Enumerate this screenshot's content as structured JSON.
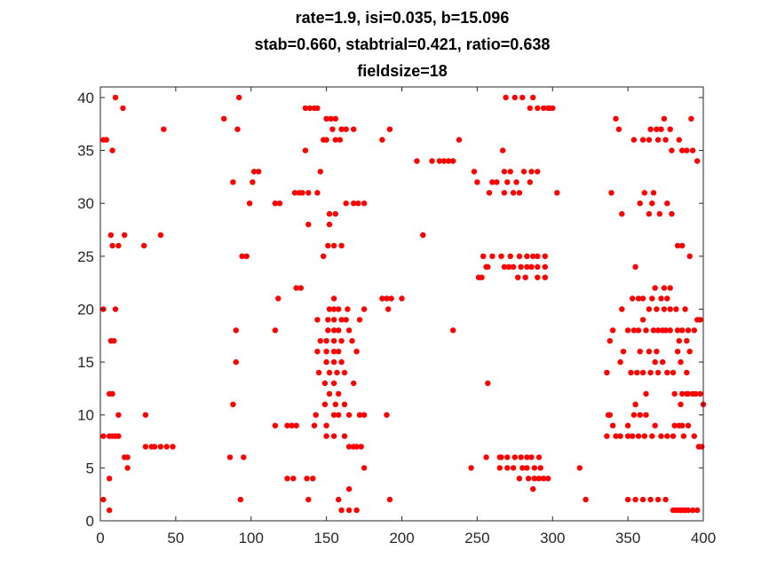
{
  "chart_data": {
    "type": "scatter",
    "title_lines": [
      "rate=1.9, isi=0.035, b=15.096",
      "stab=0.660, stabtrial=0.421, ratio=0.638",
      "fieldsize=18"
    ],
    "xlabel": "",
    "ylabel": "",
    "xlim": [
      0,
      400
    ],
    "ylim": [
      0,
      41
    ],
    "xticks": [
      "0",
      "50",
      "100",
      "150",
      "200",
      "250",
      "300",
      "350",
      "400"
    ],
    "yticks": [
      "0",
      "5",
      "10",
      "15",
      "20",
      "25",
      "30",
      "35",
      "40"
    ],
    "grid": false,
    "marker_color": "#ff0000",
    "points": [
      [
        2,
        36
      ],
      [
        4,
        36
      ],
      [
        2,
        20
      ],
      [
        2,
        8
      ],
      [
        6,
        1
      ],
      [
        2,
        2
      ],
      [
        6,
        4
      ],
      [
        6,
        12
      ],
      [
        8,
        12
      ],
      [
        7,
        17
      ],
      [
        9,
        17
      ],
      [
        6,
        8
      ],
      [
        8,
        8
      ],
      [
        10,
        8
      ],
      [
        12,
        8
      ],
      [
        7,
        27
      ],
      [
        8,
        26
      ],
      [
        12,
        26
      ],
      [
        8,
        35
      ],
      [
        10,
        40
      ],
      [
        15,
        39
      ],
      [
        10,
        20
      ],
      [
        12,
        10
      ],
      [
        16,
        6
      ],
      [
        18,
        6
      ],
      [
        16,
        27
      ],
      [
        18,
        5
      ],
      [
        29,
        26
      ],
      [
        30,
        10
      ],
      [
        30,
        7
      ],
      [
        34,
        7
      ],
      [
        36,
        7
      ],
      [
        40,
        7
      ],
      [
        44,
        7
      ],
      [
        48,
        7
      ],
      [
        40,
        27
      ],
      [
        42,
        37
      ],
      [
        82,
        38
      ],
      [
        86,
        6
      ],
      [
        88,
        32
      ],
      [
        88,
        11
      ],
      [
        90,
        15
      ],
      [
        90,
        18
      ],
      [
        91,
        37
      ],
      [
        92,
        40
      ],
      [
        94,
        25
      ],
      [
        97,
        25
      ],
      [
        95,
        6
      ],
      [
        93,
        2
      ],
      [
        99,
        30
      ],
      [
        101,
        32
      ],
      [
        102,
        33
      ],
      [
        105,
        33
      ],
      [
        116,
        9
      ],
      [
        116,
        18
      ],
      [
        116,
        30
      ],
      [
        119,
        30
      ],
      [
        118,
        21
      ],
      [
        124,
        4
      ],
      [
        124,
        9
      ],
      [
        128,
        4
      ],
      [
        127,
        9
      ],
      [
        130,
        9
      ],
      [
        130,
        22
      ],
      [
        129,
        31
      ],
      [
        132,
        31
      ],
      [
        133,
        22
      ],
      [
        134,
        31
      ],
      [
        136,
        39
      ],
      [
        136,
        35
      ],
      [
        138,
        31
      ],
      [
        139,
        39
      ],
      [
        142,
        39
      ],
      [
        144,
        31
      ],
      [
        144,
        39
      ],
      [
        137,
        4
      ],
      [
        141,
        4
      ],
      [
        138,
        28
      ],
      [
        138,
        2
      ],
      [
        142,
        9
      ],
      [
        143,
        10
      ],
      [
        144,
        19
      ],
      [
        144,
        16
      ],
      [
        145,
        14
      ],
      [
        146,
        17
      ],
      [
        146,
        33
      ],
      [
        148,
        36
      ],
      [
        148,
        25
      ],
      [
        150,
        36
      ],
      [
        150,
        38
      ],
      [
        151,
        26
      ],
      [
        152,
        28
      ],
      [
        152,
        29
      ],
      [
        153,
        38
      ],
      [
        154,
        37
      ],
      [
        155,
        26
      ],
      [
        156,
        38
      ],
      [
        156,
        36
      ],
      [
        158,
        2
      ],
      [
        160,
        1
      ],
      [
        160,
        26
      ],
      [
        149,
        11
      ],
      [
        149,
        13
      ],
      [
        150,
        8
      ],
      [
        150,
        9
      ],
      [
        150,
        15
      ],
      [
        150,
        16
      ],
      [
        150,
        17
      ],
      [
        151,
        18
      ],
      [
        151,
        19
      ],
      [
        152,
        20
      ],
      [
        152,
        12
      ],
      [
        152,
        14
      ],
      [
        155,
        8
      ],
      [
        155,
        10
      ],
      [
        155,
        13
      ],
      [
        155,
        15
      ],
      [
        155,
        16
      ],
      [
        155,
        17
      ],
      [
        155,
        18
      ],
      [
        155,
        19
      ],
      [
        155,
        20
      ],
      [
        155,
        21
      ],
      [
        156,
        29
      ],
      [
        156,
        11
      ],
      [
        157,
        14
      ],
      [
        158,
        10
      ],
      [
        158,
        12
      ],
      [
        158,
        16
      ],
      [
        158,
        18
      ],
      [
        158,
        20
      ],
      [
        159,
        36
      ],
      [
        160,
        37
      ],
      [
        160,
        15
      ],
      [
        160,
        17
      ],
      [
        160,
        19
      ],
      [
        162,
        8
      ],
      [
        162,
        11
      ],
      [
        162,
        14
      ],
      [
        163,
        30
      ],
      [
        163,
        37
      ],
      [
        163,
        19
      ],
      [
        164,
        20
      ],
      [
        165,
        1
      ],
      [
        165,
        3
      ],
      [
        165,
        7
      ],
      [
        165,
        18
      ],
      [
        165,
        10
      ],
      [
        167,
        17
      ],
      [
        168,
        7
      ],
      [
        168,
        30
      ],
      [
        168,
        37
      ],
      [
        168,
        13
      ],
      [
        170,
        7
      ],
      [
        170,
        1
      ],
      [
        170,
        16
      ],
      [
        171,
        30
      ],
      [
        172,
        10
      ],
      [
        172,
        19
      ],
      [
        173,
        7
      ],
      [
        175,
        30
      ],
      [
        175,
        10
      ],
      [
        175,
        5
      ],
      [
        175,
        20
      ],
      [
        187,
        21
      ],
      [
        190,
        21
      ],
      [
        190,
        10
      ],
      [
        187,
        36
      ],
      [
        192,
        37
      ],
      [
        191,
        20
      ],
      [
        192,
        2
      ],
      [
        193,
        21
      ],
      [
        200,
        21
      ],
      [
        210,
        34
      ],
      [
        214,
        27
      ],
      [
        220,
        34
      ],
      [
        225,
        34
      ],
      [
        228,
        34
      ],
      [
        231,
        34
      ],
      [
        234,
        18
      ],
      [
        234,
        34
      ],
      [
        238,
        36
      ],
      [
        246,
        5
      ],
      [
        248,
        33
      ],
      [
        250,
        32
      ],
      [
        251,
        23
      ],
      [
        253,
        23
      ],
      [
        254,
        25
      ],
      [
        256,
        24
      ],
      [
        256,
        6
      ],
      [
        257,
        13
      ],
      [
        257,
        24
      ],
      [
        258,
        31
      ],
      [
        260,
        32
      ],
      [
        260,
        25
      ],
      [
        263,
        32
      ],
      [
        265,
        5
      ],
      [
        265,
        6
      ],
      [
        266,
        6
      ],
      [
        266,
        25
      ],
      [
        267,
        35
      ],
      [
        268,
        33
      ],
      [
        268,
        24
      ],
      [
        268,
        31
      ],
      [
        269,
        40
      ],
      [
        270,
        32
      ],
      [
        270,
        5
      ],
      [
        270,
        6
      ],
      [
        271,
        24
      ],
      [
        272,
        25
      ],
      [
        272,
        33
      ],
      [
        274,
        31
      ],
      [
        274,
        24
      ],
      [
        274,
        5
      ],
      [
        275,
        40
      ],
      [
        275,
        6
      ],
      [
        276,
        32
      ],
      [
        277,
        23
      ],
      [
        278,
        25
      ],
      [
        278,
        4
      ],
      [
        278,
        31
      ],
      [
        279,
        24
      ],
      [
        279,
        6
      ],
      [
        280,
        5
      ],
      [
        280,
        40
      ],
      [
        281,
        33
      ],
      [
        282,
        23
      ],
      [
        283,
        24
      ],
      [
        283,
        6
      ],
      [
        283,
        25
      ],
      [
        283,
        5
      ],
      [
        284,
        4
      ],
      [
        285,
        39
      ],
      [
        285,
        32
      ],
      [
        286,
        6
      ],
      [
        286,
        24
      ],
      [
        287,
        25
      ],
      [
        286,
        33
      ],
      [
        287,
        40
      ],
      [
        287,
        3
      ],
      [
        288,
        5
      ],
      [
        288,
        4
      ],
      [
        290,
        39
      ],
      [
        290,
        24
      ],
      [
        290,
        25
      ],
      [
        290,
        23
      ],
      [
        290,
        33
      ],
      [
        291,
        6
      ],
      [
        291,
        4
      ],
      [
        292,
        5
      ],
      [
        294,
        4
      ],
      [
        294,
        39
      ],
      [
        295,
        24
      ],
      [
        295,
        25
      ],
      [
        295,
        23
      ],
      [
        297,
        4
      ],
      [
        297,
        39
      ],
      [
        298,
        39
      ],
      [
        300,
        39
      ],
      [
        303,
        31
      ],
      [
        318,
        5
      ],
      [
        322,
        2
      ],
      [
        336,
        8
      ],
      [
        336,
        14
      ],
      [
        337,
        10
      ],
      [
        338,
        10
      ],
      [
        338,
        17
      ],
      [
        339,
        31
      ],
      [
        340,
        18
      ],
      [
        340,
        9
      ],
      [
        342,
        38
      ],
      [
        342,
        8
      ],
      [
        344,
        37
      ],
      [
        345,
        15
      ],
      [
        345,
        8
      ],
      [
        346,
        20
      ],
      [
        346,
        29
      ],
      [
        347,
        16
      ],
      [
        350,
        2
      ],
      [
        350,
        18
      ],
      [
        350,
        9
      ],
      [
        350,
        8
      ],
      [
        352,
        14
      ],
      [
        353,
        21
      ],
      [
        353,
        8
      ],
      [
        354,
        18
      ],
      [
        354,
        10
      ],
      [
        354,
        36
      ],
      [
        355,
        24
      ],
      [
        355,
        2
      ],
      [
        355,
        11
      ],
      [
        356,
        14
      ],
      [
        357,
        21
      ],
      [
        357,
        18
      ],
      [
        357,
        8
      ],
      [
        358,
        10
      ],
      [
        358,
        30
      ],
      [
        358,
        16
      ],
      [
        360,
        2
      ],
      [
        360,
        19
      ],
      [
        360,
        36
      ],
      [
        360,
        21
      ],
      [
        360,
        14
      ],
      [
        361,
        31
      ],
      [
        361,
        8
      ],
      [
        362,
        18
      ],
      [
        362,
        10
      ],
      [
        362,
        12
      ],
      [
        364,
        29
      ],
      [
        364,
        20
      ],
      [
        364,
        16
      ],
      [
        364,
        36
      ],
      [
        365,
        2
      ],
      [
        365,
        37
      ],
      [
        365,
        14
      ],
      [
        366,
        21
      ],
      [
        366,
        8
      ],
      [
        366,
        30
      ],
      [
        367,
        18
      ],
      [
        367,
        31
      ],
      [
        368,
        22
      ],
      [
        368,
        9
      ],
      [
        368,
        15
      ],
      [
        369,
        37
      ],
      [
        369,
        20
      ],
      [
        369,
        16
      ],
      [
        370,
        2
      ],
      [
        370,
        36
      ],
      [
        370,
        18
      ],
      [
        370,
        14
      ],
      [
        371,
        29
      ],
      [
        372,
        21
      ],
      [
        372,
        8
      ],
      [
        372,
        37
      ],
      [
        373,
        15
      ],
      [
        373,
        18
      ],
      [
        374,
        38
      ],
      [
        374,
        22
      ],
      [
        374,
        20
      ],
      [
        375,
        2
      ],
      [
        375,
        18
      ],
      [
        375,
        36
      ],
      [
        376,
        14
      ],
      [
        376,
        8
      ],
      [
        376,
        30
      ],
      [
        376,
        21
      ],
      [
        378,
        37
      ],
      [
        378,
        22
      ],
      [
        378,
        20
      ],
      [
        378,
        18
      ],
      [
        379,
        35
      ],
      [
        379,
        29
      ],
      [
        380,
        14
      ],
      [
        380,
        8
      ],
      [
        380,
        1
      ],
      [
        381,
        9
      ],
      [
        381,
        12
      ],
      [
        382,
        1
      ],
      [
        382,
        20
      ],
      [
        383,
        18
      ],
      [
        383,
        16
      ],
      [
        383,
        26
      ],
      [
        384,
        1
      ],
      [
        384,
        17
      ],
      [
        384,
        9
      ],
      [
        384,
        36
      ],
      [
        385,
        1
      ],
      [
        385,
        11
      ],
      [
        385,
        15
      ],
      [
        386,
        12
      ],
      [
        386,
        26
      ],
      [
        386,
        18
      ],
      [
        386,
        35
      ],
      [
        386,
        9
      ],
      [
        387,
        1
      ],
      [
        387,
        8
      ],
      [
        388,
        1
      ],
      [
        388,
        20
      ],
      [
        389,
        12
      ],
      [
        389,
        17
      ],
      [
        389,
        14
      ],
      [
        389,
        35
      ],
      [
        390,
        18
      ],
      [
        390,
        9
      ],
      [
        390,
        1
      ],
      [
        390,
        12
      ],
      [
        391,
        16
      ],
      [
        391,
        25
      ],
      [
        392,
        38
      ],
      [
        393,
        12
      ],
      [
        393,
        1
      ],
      [
        393,
        35
      ],
      [
        394,
        18
      ],
      [
        394,
        8
      ],
      [
        395,
        12
      ],
      [
        396,
        19
      ],
      [
        396,
        34
      ],
      [
        396,
        1
      ],
      [
        397,
        7
      ],
      [
        398,
        19
      ],
      [
        398,
        12
      ],
      [
        399,
        7
      ],
      [
        400,
        11
      ]
    ]
  }
}
